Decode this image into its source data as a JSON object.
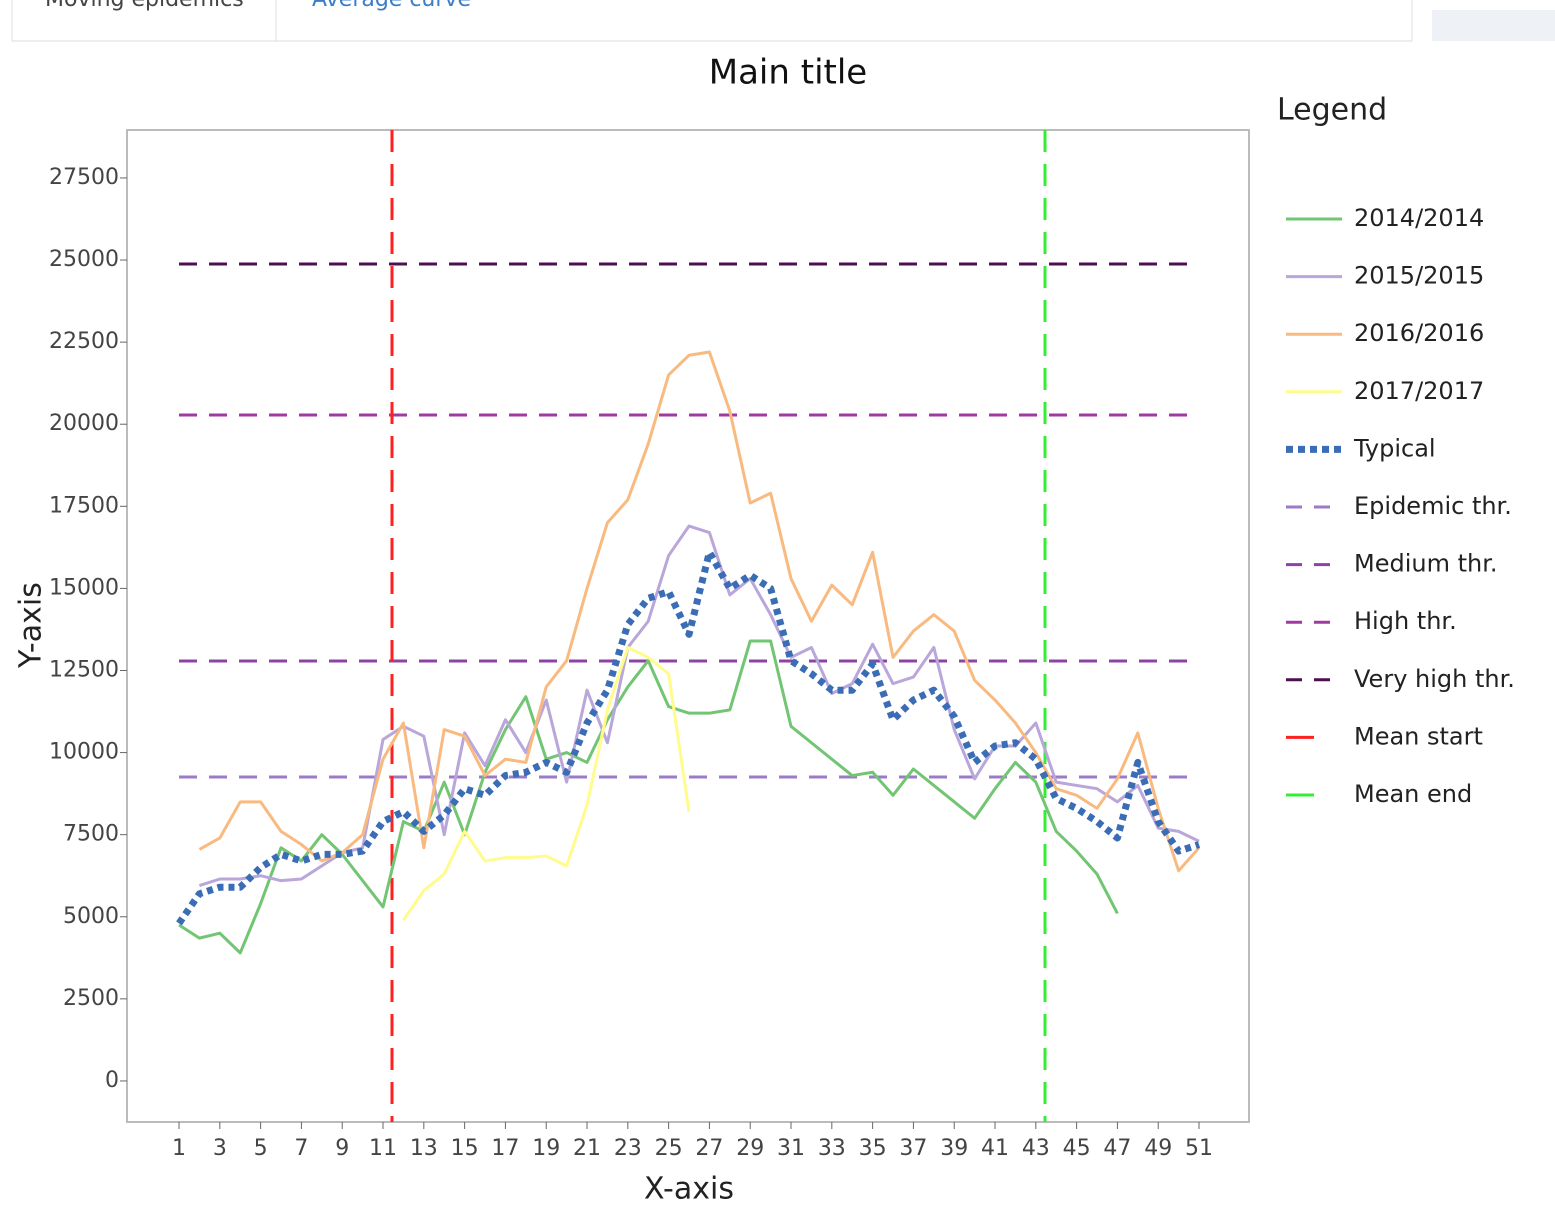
{
  "tabs": [
    "Moving epidemics",
    "Average curve"
  ],
  "chart_data": {
    "type": "line",
    "title": "Main title",
    "x_label": "X-axis",
    "y_label": "Y-axis",
    "legend_title": "Legend",
    "legend": "right",
    "x": [
      1,
      2,
      3,
      4,
      5,
      6,
      7,
      8,
      9,
      10,
      11,
      12,
      13,
      14,
      15,
      16,
      17,
      18,
      19,
      20,
      21,
      22,
      23,
      24,
      25,
      26,
      27,
      28,
      29,
      30,
      31,
      32,
      33,
      34,
      35,
      36,
      37,
      38,
      39,
      40,
      41,
      42,
      43,
      44,
      45,
      46,
      47,
      48,
      49,
      50,
      51
    ],
    "xlim": [
      -1.55,
      53.45
    ],
    "xticks": [
      1,
      3,
      5,
      7,
      9,
      11,
      13,
      15,
      17,
      19,
      21,
      23,
      25,
      27,
      29,
      31,
      33,
      35,
      37,
      39,
      41,
      43,
      45,
      47,
      49,
      51
    ],
    "ylim": [
      -1250,
      28960
    ],
    "yticks": [
      0,
      2500,
      5000,
      7500,
      10000,
      12500,
      15000,
      17500,
      20000,
      22500,
      25000,
      27500
    ],
    "series": [
      {
        "name": "2014/2014",
        "color": "#72c572",
        "dash": "solid",
        "values": [
          4750,
          4350,
          4500,
          3900,
          5400,
          7100,
          6700,
          7500,
          6900,
          6100,
          5300,
          7900,
          7600,
          9100,
          7500,
          9400,
          10700,
          11700,
          9800,
          10000,
          9700,
          11000,
          12000,
          12800,
          11400,
          11200,
          11200,
          11300,
          13400,
          13400,
          10800,
          10300,
          9800,
          9300,
          9400,
          8700,
          9500,
          9000,
          8500,
          8000,
          8900,
          9700,
          9100,
          7600,
          7000,
          6300,
          5100,
          null,
          null,
          null,
          null
        ]
      },
      {
        "name": "2015/2015",
        "color": "#b9a6da",
        "dash": "solid",
        "values": [
          null,
          5950,
          6150,
          6150,
          6250,
          6100,
          6150,
          6550,
          6950,
          7100,
          10400,
          10800,
          10500,
          7500,
          10600,
          9600,
          11000,
          10000,
          11600,
          9100,
          11900,
          10300,
          13200,
          14000,
          16000,
          16900,
          16700,
          14800,
          15300,
          14200,
          12900,
          13200,
          11800,
          12100,
          13300,
          12100,
          12300,
          13200,
          10700,
          9200,
          10200,
          10200,
          10900,
          9100,
          9000,
          8900,
          8500,
          9000,
          7700,
          7600,
          7300
        ]
      },
      {
        "name": "2016/2016",
        "color": "#f9ba80",
        "dash": "solid",
        "values": [
          null,
          7050,
          7400,
          8500,
          8500,
          7600,
          7200,
          6700,
          6950,
          7500,
          9800,
          10900,
          7100,
          10700,
          10500,
          9300,
          9800,
          9700,
          12000,
          12800,
          15000,
          17000,
          17700,
          19400,
          21500,
          22100,
          22200,
          20400,
          17600,
          17900,
          15300,
          14000,
          15100,
          14500,
          16100,
          12900,
          13700,
          14200,
          13700,
          12200,
          11600,
          10900,
          10000,
          8900,
          8700,
          8300,
          9200,
          10600,
          8300,
          6400,
          7100
        ]
      },
      {
        "name": "2017/2017",
        "color": "#fffb8c",
        "dash": "solid",
        "values": [
          null,
          null,
          null,
          null,
          null,
          null,
          null,
          null,
          null,
          null,
          null,
          4900,
          5800,
          6300,
          7600,
          6700,
          6800,
          6800,
          6850,
          6550,
          8400,
          11300,
          13200,
          12900,
          12400,
          8200,
          null,
          null,
          null,
          null,
          null,
          null,
          null,
          null,
          null,
          null,
          null,
          null,
          null,
          null,
          null,
          null,
          null,
          null,
          null,
          null,
          null,
          null,
          null,
          null,
          null
        ]
      },
      {
        "name": "Typical",
        "color": "#3a6db5",
        "dash": "dot",
        "values": [
          4800,
          5700,
          5900,
          5900,
          6500,
          6900,
          6700,
          6900,
          6900,
          7000,
          7900,
          8200,
          7600,
          8100,
          8900,
          8700,
          9300,
          9400,
          9700,
          9400,
          10900,
          11900,
          13900,
          14700,
          14900,
          13600,
          16100,
          15000,
          15400,
          15000,
          12800,
          12400,
          11900,
          11900,
          12700,
          11000,
          11600,
          11900,
          11100,
          9700,
          10200,
          10300,
          9800,
          8600,
          8300,
          7900,
          7400,
          9700,
          7900,
          7000,
          7200
        ]
      }
    ],
    "hlines": [
      {
        "name": "Epidemic thr.",
        "color": "#9b7bc8",
        "value": 9257
      },
      {
        "name": "Medium thr.",
        "color": "#8c43a6",
        "value": 12790
      },
      {
        "name": "High thr.",
        "color": "#a03aa0",
        "value": 20280
      },
      {
        "name": "Very high thr.",
        "color": "#4c0f4f",
        "value": 24880
      }
    ],
    "vlines": [
      {
        "name": "Mean start",
        "color": "#ff2020",
        "value": 11.44
      },
      {
        "name": "Mean end",
        "color": "#33ee33",
        "value": 43.45
      }
    ]
  }
}
